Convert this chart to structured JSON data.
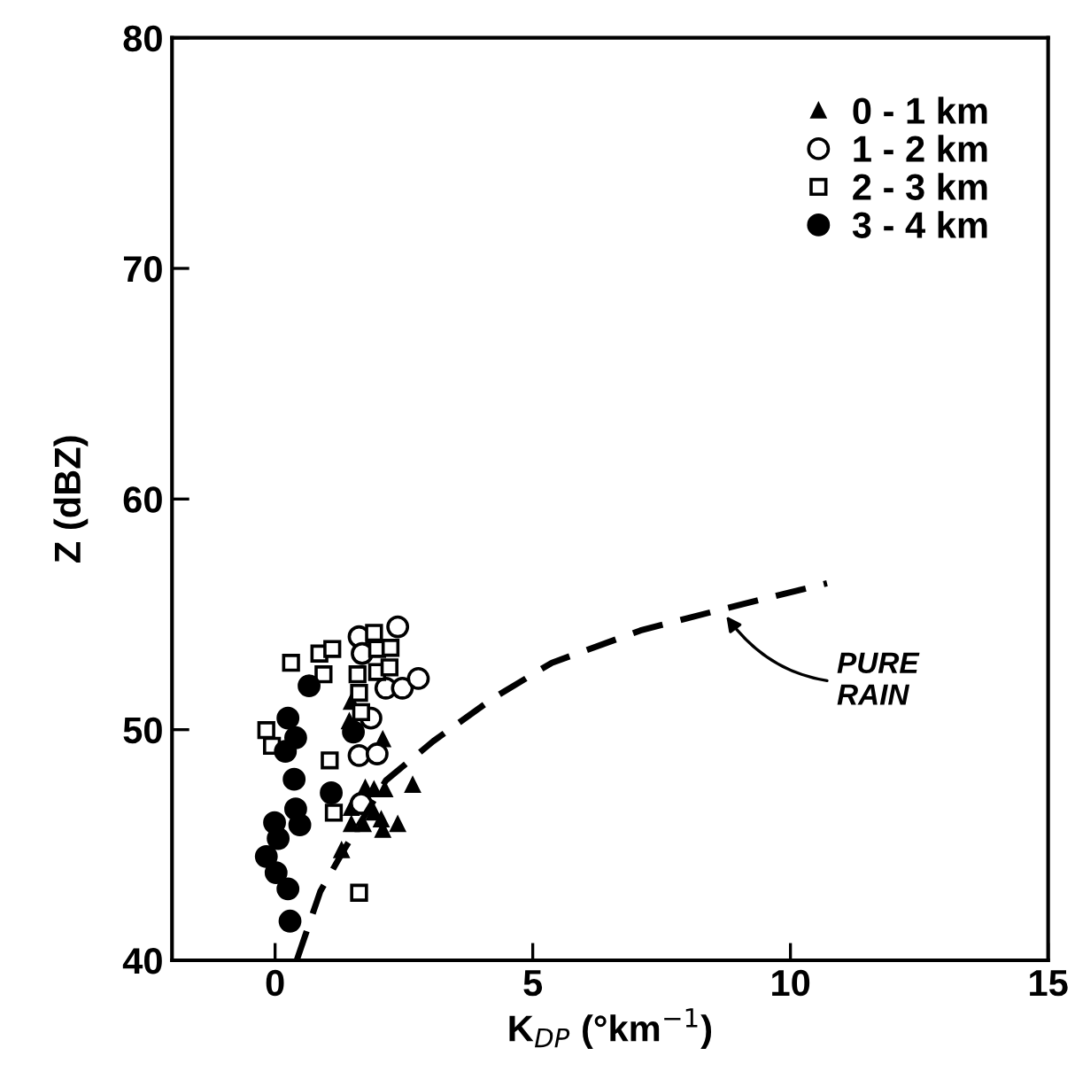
{
  "chart_data": {
    "type": "scatter",
    "xlabel": "K$_{DP}$ (°km$^{−1}$)",
    "ylabel": "Z (dBZ)",
    "xlim": [
      -2,
      15
    ],
    "ylim": [
      40,
      80
    ],
    "xticks": [
      0,
      5,
      10,
      15
    ],
    "yticks": [
      40,
      50,
      60,
      70,
      80
    ],
    "grid": false,
    "legend": "top right",
    "annotations": [
      {
        "text": "PURE\nRAIN",
        "x": 8.7,
        "y": 55.1
      }
    ],
    "series": [
      {
        "name": "0 - 1 km",
        "color": "#000000",
        "marker": "triangle",
        "x": [
          1.48,
          1.44,
          2.09,
          1.75,
          1.92,
          2.13,
          2.67,
          1.48,
          1.71,
          1.48,
          1.92,
          2.06,
          2.09,
          2.38,
          1.29
        ],
        "values": [
          51.2,
          50.35,
          49.57,
          47.46,
          47.4,
          47.4,
          47.6,
          46.6,
          45.9,
          45.9,
          46.4,
          46.1,
          45.65,
          45.9,
          44.76
        ]
      },
      {
        "name": "1 - 2 km",
        "color": "#ffffff",
        "marker": "circle",
        "x": [
          2.38,
          1.63,
          1.69,
          2.15,
          2.47,
          2.78,
          1.86,
          1.63,
          1.98,
          1.67
        ],
        "values": [
          54.46,
          54.03,
          53.3,
          51.8,
          51.8,
          52.22,
          50.5,
          48.88,
          48.95,
          46.8
        ]
      },
      {
        "name": "2 - 3 km",
        "color": "#ffffff",
        "marker": "square",
        "x": [
          0.31,
          0.86,
          1.11,
          0.94,
          1.92,
          1.98,
          2.24,
          1.6,
          1.98,
          2.22,
          1.63,
          -0.17,
          -0.06,
          1.67,
          1.06,
          1.14,
          1.63
        ],
        "values": [
          52.9,
          53.3,
          53.5,
          52.4,
          54.2,
          53.5,
          53.55,
          52.4,
          52.5,
          52.7,
          51.6,
          49.98,
          49.3,
          50.76,
          48.67,
          46.4,
          42.93
        ]
      },
      {
        "name": "3 - 4 km",
        "color": "#000000",
        "marker": "circle",
        "x": [
          0.66,
          0.25,
          0.4,
          0.2,
          0.37,
          0.4,
          0.48,
          -0.01,
          0.06,
          -0.17,
          0.02,
          0.25,
          0.29,
          1.52,
          1.09
        ],
        "values": [
          51.9,
          50.5,
          49.65,
          49.06,
          47.85,
          46.56,
          45.87,
          45.97,
          45.28,
          44.5,
          43.8,
          43.1,
          41.7,
          49.9,
          47.26
        ]
      },
      {
        "type": "line",
        "color": "#000000",
        "line_style": "dashed",
        "marker": "none",
        "x": [
          0.42,
          0.88,
          1.34,
          2.15,
          3.07,
          4.22,
          5.37,
          7.09,
          8.64,
          10.71
        ],
        "values": [
          40,
          43.0,
          44.8,
          47.8,
          49.5,
          51.35,
          52.9,
          54.3,
          55.2,
          56.35
        ]
      }
    ]
  }
}
